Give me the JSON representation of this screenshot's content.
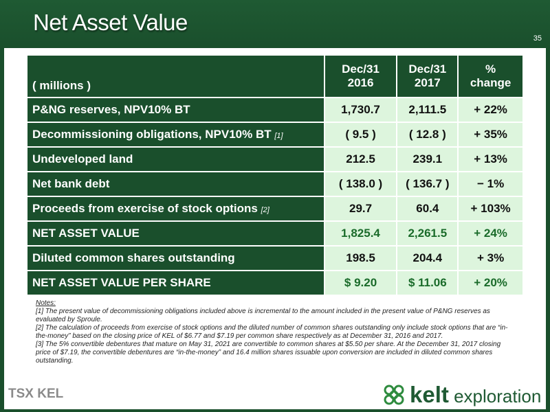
{
  "slide": {
    "title": "Net Asset Value",
    "page_number": "35"
  },
  "table": {
    "header": {
      "label": "( millions )",
      "columns": [
        {
          "line1": "Dec/31",
          "line2": "2016"
        },
        {
          "line1": "Dec/31",
          "line2": "2017"
        },
        {
          "line1": "%",
          "line2": "change"
        }
      ]
    },
    "rows": [
      {
        "label": "P&NG reserves, NPV10% BT",
        "note": "",
        "values": [
          "1,730.7",
          "2,111.5",
          "+ 22%"
        ]
      },
      {
        "label": "Decommissioning obligations, NPV10% BT",
        "note": "[1]",
        "values": [
          "( 9.5 )",
          "( 12.8 )",
          "+ 35%"
        ]
      },
      {
        "label": "Undeveloped land",
        "note": "",
        "values": [
          "212.5",
          "239.1",
          "+ 13%"
        ]
      },
      {
        "label": "Net bank debt",
        "note": "",
        "values": [
          "( 138.0 )",
          "( 136.7 )",
          "− 1%"
        ]
      },
      {
        "label": "Proceeds from exercise of stock options",
        "note": "[2]",
        "values": [
          "29.7",
          "60.4",
          "+ 103%"
        ]
      },
      {
        "label": "NET ASSET VALUE",
        "note": "",
        "values": [
          "1,825.4",
          "2,261.5",
          "+ 24%"
        ]
      },
      {
        "label": "Diluted common shares outstanding",
        "note": "",
        "values": [
          "198.5",
          "204.4",
          "+ 3%"
        ]
      },
      {
        "label": "NET ASSET VALUE PER SHARE",
        "note": "",
        "values": [
          "$ 9.20",
          "$ 11.06",
          "+ 20%"
        ]
      }
    ]
  },
  "notes": {
    "heading": "Notes:",
    "items": [
      "[1] The present value of decommissioning obligations included above is incremental to the amount included in the present value of P&NG reserves as evaluated by Sproule.",
      "[2] The calculation of proceeds from exercise of stock options and the diluted number of common shares outstanding only include stock options that are “in-the-money” based on the closing price of KEL of $6.77 and $7.19 per common share respectively as at December 31, 2016 and 2017.",
      "[3] The 5% convertible debentures that mature on May 31, 2021 are convertible to common shares at $5.50 per share. At the December 31, 2017 closing price of $7.19, the convertible debentures are “in-the-money” and 16.4 million shares issuable upon conversion are included in diluted common shares outstanding."
    ]
  },
  "footer": {
    "exchange": "TSX KEL",
    "brand_main": "kelt",
    "brand_sub": " exploration",
    "brand_icon": "celtic-knot-icon"
  },
  "colors": {
    "dark_green": "#1a4f2c",
    "light_green": "#ddf5dd",
    "highlight_green": "#1a6b2a"
  }
}
